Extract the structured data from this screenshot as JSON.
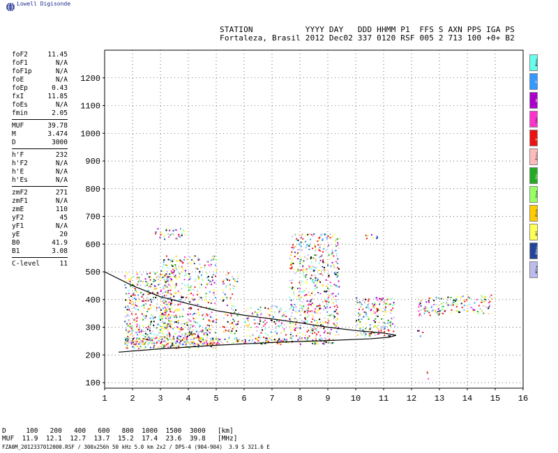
{
  "brand": "Lowell Digisonde",
  "header": {
    "line1": "STATION           YYYY DAY   DDD HHMM P1  FFS S AXN PPS IGA PS",
    "line2": "Fortaleza, Brasil 2012 Dec02 337 0120 RSF 005 2 713 100 +0+ B2"
  },
  "params": [
    [
      {
        "k": "foF2",
        "v": "11.45"
      },
      {
        "k": "foF1",
        "v": "N/A"
      },
      {
        "k": "foF1p",
        "v": "N/A"
      },
      {
        "k": "foE",
        "v": "N/A"
      },
      {
        "k": "foEp",
        "v": "0.43"
      },
      {
        "k": "fxI",
        "v": "11.85"
      },
      {
        "k": "foEs",
        "v": "N/A"
      },
      {
        "k": "fmin",
        "v": "2.05"
      }
    ],
    [
      {
        "k": "MUF",
        "v": "39.78"
      },
      {
        "k": "M",
        "v": "3.474"
      },
      {
        "k": "D",
        "v": "3000"
      }
    ],
    [
      {
        "k": "h'F",
        "v": "232"
      },
      {
        "k": "h'F2",
        "v": "N/A"
      },
      {
        "k": "h'E",
        "v": "N/A"
      },
      {
        "k": "h'Es",
        "v": "N/A"
      }
    ],
    [
      {
        "k": "zmF2",
        "v": "271"
      },
      {
        "k": "zmF1",
        "v": "N/A"
      },
      {
        "k": "zmE",
        "v": "110"
      },
      {
        "k": "yF2",
        "v": "45"
      },
      {
        "k": "yF1",
        "v": "N/A"
      },
      {
        "k": "yE",
        "v": "20"
      },
      {
        "k": "B0",
        "v": "41.9"
      },
      {
        "k": "B1",
        "v": "3.08"
      }
    ],
    [
      {
        "k": "C-level",
        "v": "11"
      }
    ]
  ],
  "legend": [
    {
      "label": "Nne",
      "color": "#66ffee"
    },
    {
      "label": "E",
      "color": "#3399ff"
    },
    {
      "label": "W",
      "color": "#aa00cc"
    },
    {
      "label": "Vo-",
      "color": "#ff33cc"
    },
    {
      "label": "X-",
      "color": "#ee1111"
    },
    {
      "label": "Ssw",
      "color": "#ffbbbb"
    },
    {
      "label": "Vo-",
      "color": "#22aa22"
    },
    {
      "label": "Vo+",
      "color": "#99ff66"
    },
    {
      "label": "Sse",
      "color": "#ffcc00"
    },
    {
      "label": "Ni-",
      "color": "#ffff55"
    },
    {
      "label": "Nnw",
      "color": "#224499"
    },
    {
      "label": "Ni+",
      "color": "#bbbbee"
    }
  ],
  "muf_table": {
    "line1": "D     100   200   400   600   800  1000  1500  3000   [km]",
    "line2": "MUF  11.9  12.1  12.7  13.7  15.2  17.4  23.6  39.8   [MHz]"
  },
  "footer": "FZA0M_2012337012000.RSF / 300x256h 50 kHz 5.0 km 2x2 / DPS-4 (904-904)  3.9 S 321.6 E",
  "chart_data": {
    "type": "scatter",
    "xlim": [
      1,
      16
    ],
    "ylim": [
      80,
      1300
    ],
    "x_ticks": [
      1,
      2,
      3,
      4,
      5,
      6,
      7,
      8,
      9,
      10,
      11,
      12,
      13,
      14,
      15,
      16
    ],
    "y_ticks": [
      100,
      200,
      300,
      400,
      500,
      600,
      700,
      800,
      900,
      1000,
      1100,
      1200
    ],
    "grid": true,
    "profile_lower": [
      [
        1.5,
        210
      ],
      [
        3,
        222
      ],
      [
        5,
        235
      ],
      [
        7,
        245
      ],
      [
        9,
        252
      ],
      [
        10.5,
        258
      ],
      [
        11.2,
        264
      ],
      [
        11.45,
        271
      ]
    ],
    "profile_upper": [
      [
        1,
        500
      ],
      [
        2,
        450
      ],
      [
        3,
        410
      ],
      [
        4,
        385
      ],
      [
        5,
        360
      ],
      [
        6,
        343
      ],
      [
        7,
        330
      ],
      [
        8,
        316
      ],
      [
        9,
        300
      ],
      [
        10,
        288
      ],
      [
        11,
        279
      ],
      [
        11.45,
        271
      ]
    ],
    "echo_regions": [
      {
        "x": [
          1.7,
          5.0
        ],
        "y": [
          225,
          300
        ],
        "density": 0.75
      },
      {
        "x": [
          1.7,
          9.3
        ],
        "y": [
          240,
          265
        ],
        "density": 0.85
      },
      {
        "x": [
          1.7,
          3.4
        ],
        "y": [
          300,
          500
        ],
        "density": 0.55
      },
      {
        "x": [
          3.0,
          5.0
        ],
        "y": [
          300,
          560
        ],
        "density": 0.4
      },
      {
        "x": [
          5.2,
          5.8
        ],
        "y": [
          280,
          500
        ],
        "density": 0.35
      },
      {
        "x": [
          6.0,
          7.5
        ],
        "y": [
          260,
          380
        ],
        "density": 0.35
      },
      {
        "x": [
          7.6,
          9.4
        ],
        "y": [
          270,
          640
        ],
        "density": 0.45
      },
      {
        "x": [
          10.0,
          11.4
        ],
        "y": [
          270,
          410
        ],
        "density": 0.55
      },
      {
        "x": [
          12.2,
          13.0
        ],
        "y": [
          340,
          410
        ],
        "density": 0.5
      },
      {
        "x": [
          13.0,
          14.9
        ],
        "y": [
          350,
          420
        ],
        "density": 0.45
      },
      {
        "x": [
          12.2,
          12.4
        ],
        "y": [
          270,
          290
        ],
        "density": 0.5
      },
      {
        "x": [
          12.5,
          12.6
        ],
        "y": [
          90,
          160
        ],
        "density": 0.35
      },
      {
        "x": [
          2.8,
          3.9
        ],
        "y": [
          620,
          660
        ],
        "density": 0.45
      },
      {
        "x": [
          10.2,
          10.8
        ],
        "y": [
          620,
          640
        ],
        "density": 0.4
      }
    ]
  }
}
